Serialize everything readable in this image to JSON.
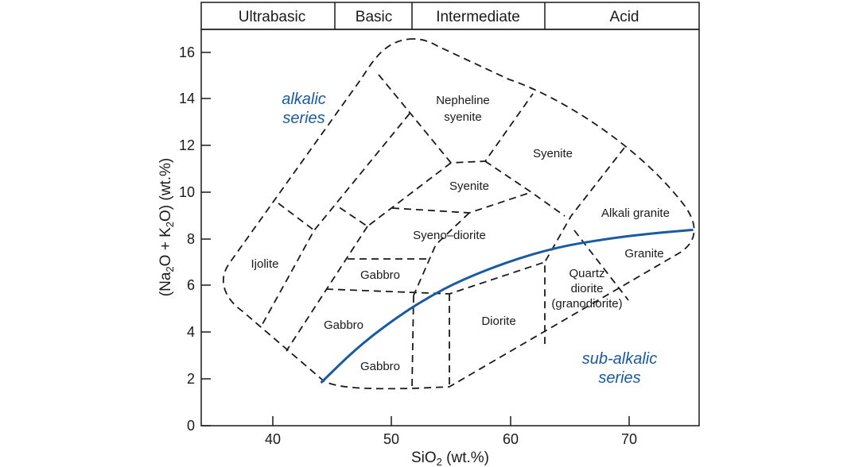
{
  "header_bands": [
    {
      "label": "Ultrabasic",
      "from": 35,
      "to": 45
    },
    {
      "label": "Basic",
      "from": 45,
      "to": 52
    },
    {
      "label": "Intermediate",
      "from": 52,
      "to": 63
    },
    {
      "label": "Acid",
      "from": 63,
      "to": 74
    }
  ],
  "axes": {
    "x": {
      "title": "SiO",
      "title_sub": "2",
      "title_suffix": " (wt.%)",
      "ticks": [
        "40",
        "50",
        "60",
        "70"
      ],
      "range": [
        34,
        76
      ]
    },
    "y": {
      "title": "(Na",
      "title_sub1": "2",
      "title_mid": "O + K",
      "title_sub2": "2",
      "title_suffix": "O) (wt.%)",
      "ticks": [
        "0",
        "2",
        "4",
        "6",
        "8",
        "10",
        "12",
        "14",
        "16"
      ],
      "range": [
        0,
        17.1
      ]
    }
  },
  "fields": [
    {
      "id": "ijolite",
      "label": "Ijolite"
    },
    {
      "id": "nepheline-syenite",
      "lines": [
        "Nepheline",
        "syenite"
      ]
    },
    {
      "id": "syenite-upper",
      "label": "Syenite"
    },
    {
      "id": "syenite-lower",
      "label": "Syenite"
    },
    {
      "id": "syeno-diorite",
      "label": "Syeno–diorite"
    },
    {
      "id": "alkali-granite",
      "label": "Alkali granite"
    },
    {
      "id": "granite",
      "label": "Granite"
    },
    {
      "id": "gabbro-upper",
      "label": "Gabbro"
    },
    {
      "id": "gabbro-left",
      "label": "Gabbro"
    },
    {
      "id": "gabbro-lower",
      "label": "Gabbro"
    },
    {
      "id": "diorite",
      "label": "Diorite"
    },
    {
      "id": "quartz-diorite",
      "lines": [
        "Quartz",
        "diorite",
        "(granodiorite)"
      ]
    }
  ],
  "series": [
    {
      "id": "alkalic",
      "lines": [
        "alkalic",
        "series"
      ]
    },
    {
      "id": "sub-alkalic",
      "lines": [
        "sub-alkalic",
        "series"
      ]
    }
  ],
  "colors": {
    "series_line": "#1a5aa0",
    "series_text": "#1a5aa0",
    "ink": "#1a1a1a"
  },
  "divider_curve": [
    [
      44.1,
      1.85
    ],
    [
      47,
      3.3
    ],
    [
      50,
      4.5
    ],
    [
      53,
      5.5
    ],
    [
      56,
      6.3
    ],
    [
      60,
      7.1
    ],
    [
      64,
      7.7
    ],
    [
      68,
      8.05
    ],
    [
      72,
      8.3
    ],
    [
      75.5,
      8.45
    ]
  ]
}
